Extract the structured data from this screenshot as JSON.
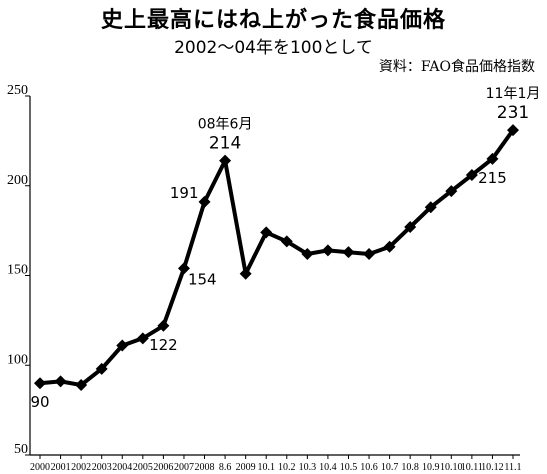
{
  "chart_data": {
    "type": "line",
    "title": "史上最高にはね上がった食品価格",
    "subtitle": "2002～04年を100として",
    "source": "資料：FAO食品価格指数",
    "ylim": [
      50,
      250
    ],
    "yticks": [
      "50",
      "100",
      "150",
      "200",
      "250"
    ],
    "grid": false,
    "categories": [
      "2000",
      "2001",
      "2002",
      "2003",
      "2004",
      "2005",
      "2006",
      "2007",
      "2008",
      "8.6",
      "2009",
      "10.1",
      "10.2",
      "10.3",
      "10.4",
      "10.5",
      "10.6",
      "10.7",
      "10.8",
      "10.9",
      "10.10",
      "10.11",
      "10.12",
      "11.1"
    ],
    "values": [
      90,
      91,
      89,
      98,
      111,
      115,
      122,
      154,
      191,
      214,
      151,
      174,
      169,
      162,
      164,
      163,
      162,
      166,
      177,
      188,
      197,
      206,
      215,
      231
    ],
    "data_labels": [
      {
        "index": 0,
        "text": "90",
        "pos": "below"
      },
      {
        "index": 6,
        "text": "122",
        "pos": "below"
      },
      {
        "index": 7,
        "text": "154",
        "pos": "right"
      },
      {
        "index": 8,
        "text": "191",
        "pos": "left"
      },
      {
        "index": 9,
        "text": "214",
        "pos": "above",
        "note": "08年6月"
      },
      {
        "index": 22,
        "text": "215",
        "pos": "below"
      },
      {
        "index": 23,
        "text": "231",
        "pos": "above",
        "note": "11年1月"
      }
    ]
  }
}
